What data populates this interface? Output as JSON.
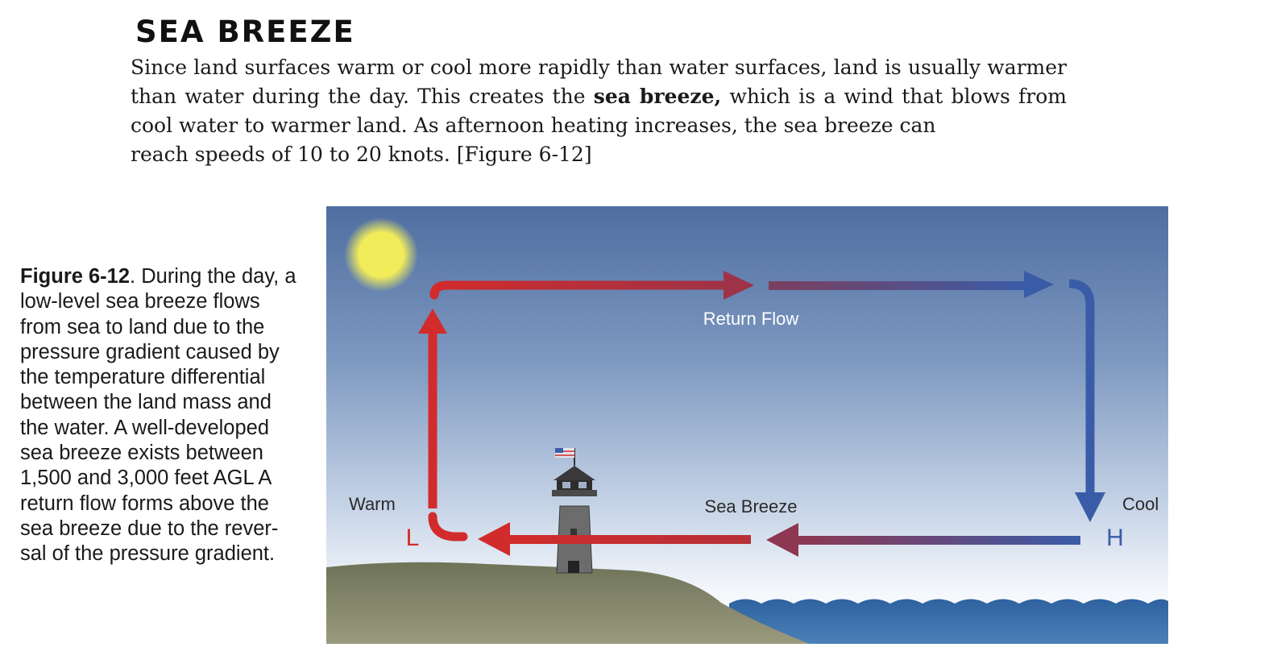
{
  "heading": "SEA BREEZE",
  "intro": {
    "before_bold": "Since land surfaces warm or cool more rapidly than water surfaces, land is usually warmer than water during the day. This creates the",
    "bold_term": "sea breeze,",
    "after_bold": "which is a wind that blows from cool water to warmer land. As afternoon heating increases, the sea breeze can",
    "last_line": "reach speeds of 10 to 20 knots. [Figure 6-12]"
  },
  "caption": {
    "label": "Figure 6-12",
    "text": ". During the day, a low-level sea breeze flows from sea to land due to the pressure gradient caused by the temperature differential between the land mass and the water. A well-developed sea breeze exists between 1,500 and 3,000 feet AGL A return flow forms above the sea breeze due to the rever-sal of the pressure gradient."
  },
  "figure": {
    "labels": {
      "return_flow": "Return Flow",
      "sea_breeze": "Sea Breeze",
      "warm": "Warm",
      "cool": "Cool",
      "low": "L",
      "high": "H"
    },
    "colors": {
      "sky_top": "#4f6ea0",
      "sky_bottom": "#f4f7fb",
      "warm_arrow": "#d22b2b",
      "cool_arrow": "#3a5ca8",
      "land": "#7b7f63",
      "sea": "#3a6fa8",
      "sun": "#f1ec5a"
    },
    "icons": [
      "sun-icon",
      "lighthouse-icon",
      "flag-icon"
    ]
  }
}
